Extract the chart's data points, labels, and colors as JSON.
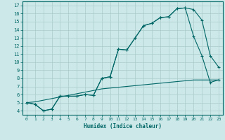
{
  "background_color": "#cce8e8",
  "grid_color": "#aacccc",
  "line_color": "#006666",
  "xlabel": "Humidex (Indice chaleur)",
  "xlim": [
    -0.5,
    23.5
  ],
  "ylim": [
    3.5,
    17.5
  ],
  "xticks": [
    0,
    1,
    2,
    3,
    4,
    5,
    6,
    7,
    8,
    9,
    10,
    11,
    12,
    13,
    14,
    15,
    16,
    17,
    18,
    19,
    20,
    21,
    22,
    23
  ],
  "yticks": [
    4,
    5,
    6,
    7,
    8,
    9,
    10,
    11,
    12,
    13,
    14,
    15,
    16,
    17
  ],
  "line1_x": [
    0,
    1,
    2,
    3,
    4,
    5,
    6,
    7,
    8,
    9,
    10,
    11,
    12,
    13,
    14,
    15,
    16,
    17,
    18,
    19,
    20,
    21,
    22,
    23
  ],
  "line1_y": [
    5.0,
    4.8,
    4.0,
    4.2,
    5.8,
    5.8,
    5.8,
    6.0,
    5.9,
    8.0,
    8.2,
    11.6,
    11.5,
    13.0,
    14.5,
    14.8,
    15.5,
    15.6,
    16.6,
    16.7,
    16.5,
    15.2,
    10.8,
    9.4
  ],
  "line2_x": [
    0,
    1,
    2,
    3,
    4,
    5,
    6,
    7,
    8,
    9,
    10,
    11,
    12,
    13,
    14,
    15,
    16,
    17,
    18,
    19,
    20,
    21,
    22,
    23
  ],
  "line2_y": [
    5.0,
    4.8,
    4.0,
    4.2,
    5.8,
    5.8,
    5.8,
    6.0,
    5.9,
    8.0,
    8.2,
    11.6,
    11.5,
    13.0,
    14.5,
    14.8,
    15.5,
    15.6,
    16.6,
    16.7,
    13.2,
    10.8,
    7.5,
    7.8
  ],
  "line3_x": [
    0,
    1,
    2,
    3,
    4,
    5,
    6,
    7,
    8,
    9,
    10,
    11,
    12,
    13,
    14,
    15,
    16,
    17,
    18,
    19,
    20,
    21,
    22,
    23
  ],
  "line3_y": [
    5.0,
    5.1,
    5.3,
    5.5,
    5.7,
    5.9,
    6.1,
    6.3,
    6.5,
    6.7,
    6.8,
    6.9,
    7.0,
    7.1,
    7.2,
    7.3,
    7.4,
    7.5,
    7.6,
    7.7,
    7.8,
    7.8,
    7.8,
    7.8
  ]
}
